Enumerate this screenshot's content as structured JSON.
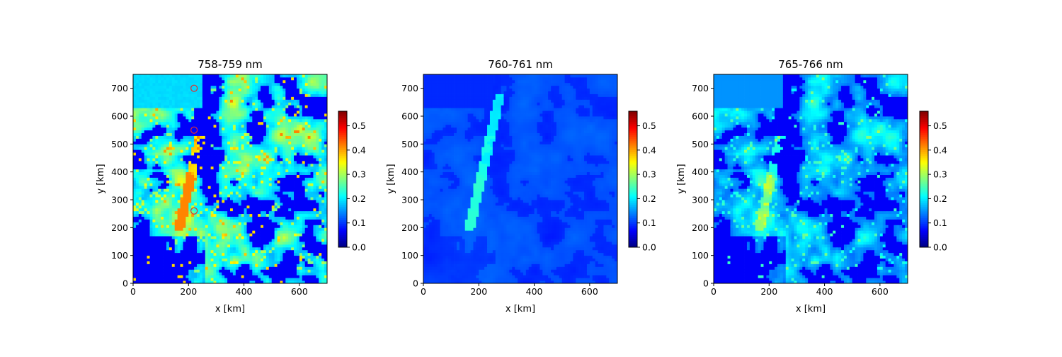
{
  "chart_data": [
    {
      "type": "heatmap",
      "title": "758-759 nm",
      "xlabel": "x [km]",
      "ylabel": "y [km]",
      "xlim": [
        0,
        700
      ],
      "ylim": [
        0,
        750
      ],
      "xticks": [
        0,
        200,
        400,
        600
      ],
      "yticks": [
        0,
        100,
        200,
        300,
        400,
        500,
        600,
        700
      ],
      "colormap": "jet",
      "clim": [
        0,
        0.56
      ],
      "colorbar_ticks": [
        0.0,
        0.1,
        0.2,
        0.3,
        0.4,
        0.5
      ],
      "colorbar_tick_labels": [
        "0.0",
        "0.1",
        "0.2",
        "0.3",
        "0.4",
        "0.5"
      ],
      "annotations": {
        "type": "circle-markers",
        "color": "#e03030",
        "points": [
          [
            220,
            700
          ],
          [
            220,
            550
          ],
          [
            220,
            260
          ]
        ]
      },
      "field_pattern": "high"
    },
    {
      "type": "heatmap",
      "title": "760-761 nm",
      "xlabel": "x [km]",
      "ylabel": "y [km]",
      "xlim": [
        0,
        700
      ],
      "ylim": [
        0,
        750
      ],
      "xticks": [
        0,
        200,
        400,
        600
      ],
      "yticks": [
        0,
        100,
        200,
        300,
        400,
        500,
        600,
        700
      ],
      "colormap": "jet",
      "clim": [
        0,
        0.56
      ],
      "colorbar_ticks": [
        0.0,
        0.1,
        0.2,
        0.3,
        0.4,
        0.5
      ],
      "colorbar_tick_labels": [
        "0.0",
        "0.1",
        "0.2",
        "0.3",
        "0.4",
        "0.5"
      ],
      "field_pattern": "low"
    },
    {
      "type": "heatmap",
      "title": "765-766 nm",
      "xlabel": "x [km]",
      "ylabel": "y [km]",
      "xlim": [
        0,
        700
      ],
      "ylim": [
        0,
        750
      ],
      "xticks": [
        0,
        200,
        400,
        600
      ],
      "yticks": [
        0,
        100,
        200,
        300,
        400,
        500,
        600,
        700
      ],
      "colormap": "jet",
      "clim": [
        0,
        0.56
      ],
      "colorbar_ticks": [
        0.0,
        0.1,
        0.2,
        0.3,
        0.4,
        0.5
      ],
      "colorbar_tick_labels": [
        "0.0",
        "0.1",
        "0.2",
        "0.3",
        "0.4",
        "0.5"
      ],
      "field_pattern": "medium"
    }
  ]
}
